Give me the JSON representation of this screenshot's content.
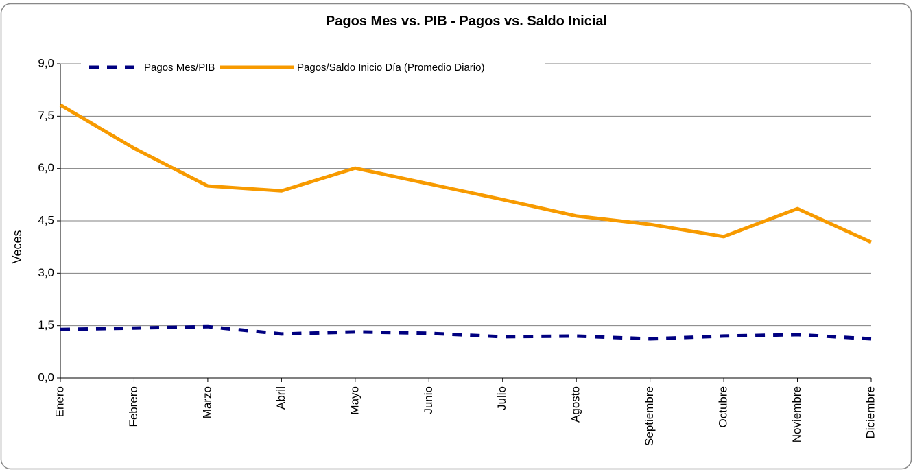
{
  "chart_data": {
    "type": "line",
    "title": "Pagos Mes vs. PIB  -  Pagos vs. Saldo Inicial",
    "y_label": "Veces",
    "categories": [
      "Enero",
      "Febrero",
      "Marzo",
      "Abril",
      "Mayo",
      "Junio",
      "Julio",
      "Agosto",
      "Septiembre",
      "Octubre",
      "Noviembre",
      "Diciembre"
    ],
    "series": [
      {
        "name": "Pagos Mes/PIB",
        "color": "#000080",
        "dashed": true,
        "values": [
          1.39,
          1.43,
          1.47,
          1.26,
          1.32,
          1.28,
          1.18,
          1.2,
          1.12,
          1.2,
          1.24,
          1.12
        ]
      },
      {
        "name": "Pagos/Saldo Inicio Día (Promedio Diario)",
        "color": "#f79a00",
        "dashed": false,
        "values": [
          7.82,
          6.58,
          5.5,
          5.36,
          6.01,
          5.56,
          5.11,
          4.64,
          4.4,
          4.05,
          4.85,
          3.89
        ]
      }
    ],
    "ylim": [
      0,
      9
    ],
    "yticks": [
      {
        "value": 0,
        "label": "0,0"
      },
      {
        "value": 1.5,
        "label": "1,5"
      },
      {
        "value": 3,
        "label": "3,0"
      },
      {
        "value": 4.5,
        "label": "4,5"
      },
      {
        "value": 6,
        "label": "6,0"
      },
      {
        "value": 7.5,
        "label": "7,5"
      },
      {
        "value": 9,
        "label": "9,0"
      }
    ],
    "grid": true
  }
}
